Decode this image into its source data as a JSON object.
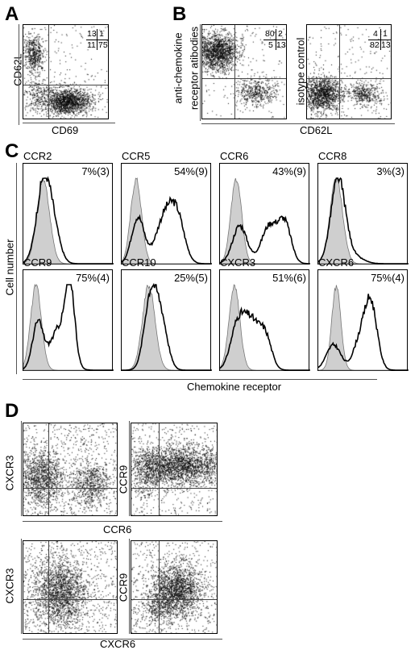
{
  "panels": {
    "A": {
      "letter": "A",
      "ylabel": "CD62L",
      "xlabel": "CD69",
      "quadrants": {
        "ul": "13",
        "ur": "1",
        "ll": "11",
        "lr": "75"
      }
    },
    "B": {
      "letter": "B",
      "plot1_label": "anti-chemokine receptor atibodies",
      "plot1_label_line1": "anti-chemokine",
      "plot1_label_line2": "receptor atibodies",
      "plot2_label": "isotype control",
      "xlabel": "CD62L",
      "plot1_quadrants": {
        "ul": "80",
        "ur": "2",
        "ll": "5",
        "lr": "13"
      },
      "plot2_quadrants": {
        "ul": "4",
        "ur": "1",
        "ll": "82",
        "lr": "13"
      }
    },
    "C": {
      "letter": "C",
      "ylabel": "Cell number",
      "xlabel": "Chemokine receptor",
      "histograms": [
        {
          "receptor": "CCR2",
          "value": "7%(3)"
        },
        {
          "receptor": "CCR5",
          "value": "54%(9)"
        },
        {
          "receptor": "CCR6",
          "value": "43%(9)"
        },
        {
          "receptor": "CCR8",
          "value": "3%(3)"
        },
        {
          "receptor": "CCR9",
          "value": "75%(4)"
        },
        {
          "receptor": "CCR10",
          "value": "25%(5)"
        },
        {
          "receptor": "CXCR3",
          "value": "51%(6)"
        },
        {
          "receptor": "CXCR6",
          "value": "75%(4)"
        }
      ]
    },
    "D": {
      "letter": "D",
      "row1": {
        "ylabel_left": "CXCR3",
        "ylabel_right": "CCR9",
        "xlabel": "CCR6"
      },
      "row2": {
        "ylabel_left": "CXCR3",
        "ylabel_right": "CCR9",
        "xlabel": "CXCR6"
      }
    }
  }
}
